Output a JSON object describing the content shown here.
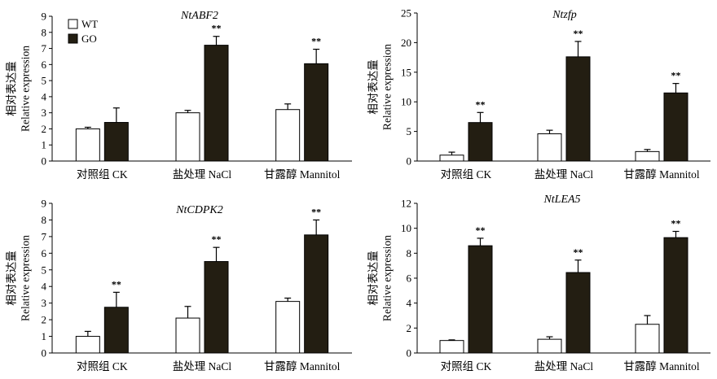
{
  "chart_data": [
    {
      "type": "bar",
      "title": "NtABF2",
      "ylabel_cn": "相对表达量",
      "ylabel_en": "Relative expression",
      "ylim": [
        0,
        9
      ],
      "yticks": [
        0,
        1,
        2,
        3,
        4,
        5,
        6,
        7,
        8,
        9
      ],
      "categories": [
        "对照组 CK",
        "盐处理 NaCl",
        "甘露醇 Mannitol"
      ],
      "series": [
        {
          "name": "WT",
          "values": [
            2.0,
            3.0,
            3.2
          ],
          "errors": [
            0.1,
            0.15,
            0.35
          ]
        },
        {
          "name": "GO",
          "values": [
            2.4,
            7.2,
            6.05
          ],
          "errors": [
            0.9,
            0.55,
            0.9
          ]
        }
      ],
      "significance": [
        "",
        "**",
        "**"
      ],
      "legend": {
        "show": true,
        "placement": "top-left"
      }
    },
    {
      "type": "bar",
      "title": "Ntzfp",
      "ylabel_cn": "相对表达量",
      "ylabel_en": "Relative expression",
      "ylim": [
        0,
        25
      ],
      "yticks": [
        0,
        5,
        10,
        15,
        20,
        25
      ],
      "categories": [
        "对照组 CK",
        "盐处理 NaCl",
        "甘露醇 Mannitol"
      ],
      "series": [
        {
          "name": "WT",
          "values": [
            1.0,
            4.6,
            1.6
          ],
          "errors": [
            0.5,
            0.6,
            0.35
          ]
        },
        {
          "name": "GO",
          "values": [
            6.5,
            17.6,
            11.5
          ],
          "errors": [
            1.7,
            2.6,
            1.6
          ]
        }
      ],
      "significance": [
        "**",
        "**",
        "**"
      ],
      "legend": {
        "show": false
      }
    },
    {
      "type": "bar",
      "title": "NtCDPK2",
      "ylabel_cn": "相对表达量",
      "ylabel_en": "Relative expression",
      "ylim": [
        0,
        9
      ],
      "yticks": [
        0,
        1,
        2,
        3,
        4,
        5,
        6,
        7,
        8,
        9
      ],
      "categories": [
        "对照组 CK",
        "盐处理 NaCl",
        "甘露醇 Mannitol"
      ],
      "series": [
        {
          "name": "WT",
          "values": [
            1.0,
            2.1,
            3.1
          ],
          "errors": [
            0.3,
            0.7,
            0.2
          ]
        },
        {
          "name": "GO",
          "values": [
            2.75,
            5.5,
            7.1
          ],
          "errors": [
            0.9,
            0.85,
            0.9
          ]
        }
      ],
      "significance": [
        "**",
        "**",
        "**"
      ],
      "legend": {
        "show": false
      }
    },
    {
      "type": "bar",
      "title": "NtLEA5",
      "ylabel_cn": "相对表达量",
      "ylabel_en": "Relative expression",
      "ylim": [
        0,
        12
      ],
      "yticks": [
        0,
        2,
        4,
        6,
        8,
        10,
        12
      ],
      "categories": [
        "对照组 CK",
        "盐处理 NaCl",
        "甘露醇 Mannitol"
      ],
      "series": [
        {
          "name": "WT",
          "values": [
            1.0,
            1.1,
            2.3
          ],
          "errors": [
            0.05,
            0.2,
            0.7
          ]
        },
        {
          "name": "GO",
          "values": [
            8.6,
            6.45,
            9.25
          ],
          "errors": [
            0.6,
            1.0,
            0.5
          ]
        }
      ],
      "significance": [
        "**",
        "**",
        "**"
      ],
      "legend": {
        "show": false
      }
    }
  ],
  "colors": {
    "WT": "#ffffff",
    "GO": "#231e12",
    "stroke": "#000000"
  }
}
